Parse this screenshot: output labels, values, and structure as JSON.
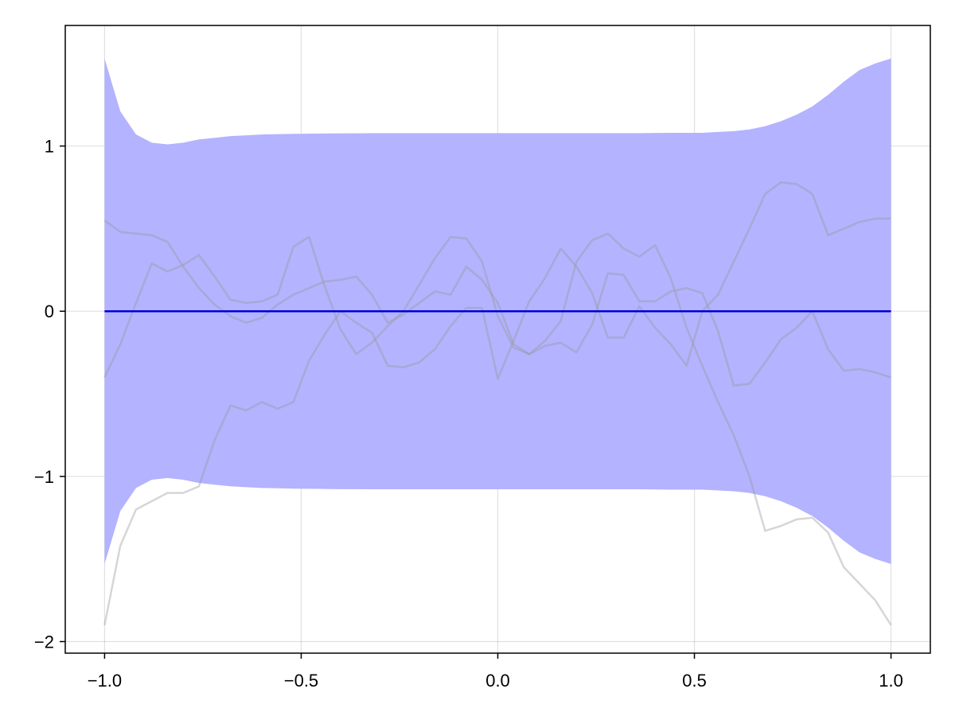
{
  "chart_data": {
    "type": "line",
    "title": "",
    "xlabel": "",
    "ylabel": "",
    "xlim": [
      -1.1,
      1.1
    ],
    "ylim": [
      -2.07,
      1.73
    ],
    "xticks": [
      -1.0,
      -0.5,
      0.0,
      0.5,
      1.0
    ],
    "xtick_labels": [
      "−1.0",
      "−0.5",
      "0.0",
      "0.5",
      "1.0"
    ],
    "yticks": [
      -2,
      -1,
      0,
      1
    ],
    "ytick_labels": [
      "−2",
      "−1",
      "0",
      "1"
    ],
    "grid": true,
    "colors": {
      "band": "#b3b3ff",
      "mean": "#0000dd",
      "sample": "#999999"
    },
    "x": [
      -1.0,
      -0.96,
      -0.92,
      -0.88,
      -0.84,
      -0.8,
      -0.76,
      -0.72,
      -0.68,
      -0.64,
      -0.6,
      -0.56,
      -0.52,
      -0.48,
      -0.44,
      -0.4,
      -0.36,
      -0.32,
      -0.28,
      -0.24,
      -0.2,
      -0.16,
      -0.12,
      -0.08,
      -0.04,
      0.0,
      0.04,
      0.08,
      0.12,
      0.16,
      0.2,
      0.24,
      0.28,
      0.32,
      0.36,
      0.4,
      0.44,
      0.48,
      0.52,
      0.56,
      0.6,
      0.64,
      0.68,
      0.72,
      0.76,
      0.8,
      0.84,
      0.88,
      0.92,
      0.96,
      1.0
    ],
    "band_upper": [
      1.53,
      1.21,
      1.07,
      1.02,
      1.01,
      1.02,
      1.04,
      1.05,
      1.06,
      1.065,
      1.07,
      1.072,
      1.074,
      1.075,
      1.076,
      1.077,
      1.077,
      1.078,
      1.078,
      1.078,
      1.078,
      1.078,
      1.078,
      1.078,
      1.078,
      1.078,
      1.078,
      1.078,
      1.078,
      1.078,
      1.078,
      1.078,
      1.078,
      1.078,
      1.078,
      1.079,
      1.08,
      1.08,
      1.08,
      1.085,
      1.09,
      1.1,
      1.12,
      1.15,
      1.19,
      1.24,
      1.31,
      1.39,
      1.46,
      1.5,
      1.53
    ],
    "band_lower": [
      -1.53,
      -1.21,
      -1.07,
      -1.02,
      -1.01,
      -1.02,
      -1.04,
      -1.05,
      -1.06,
      -1.065,
      -1.07,
      -1.072,
      -1.074,
      -1.075,
      -1.076,
      -1.077,
      -1.077,
      -1.078,
      -1.078,
      -1.078,
      -1.078,
      -1.078,
      -1.078,
      -1.078,
      -1.078,
      -1.078,
      -1.078,
      -1.078,
      -1.078,
      -1.078,
      -1.078,
      -1.078,
      -1.078,
      -1.078,
      -1.078,
      -1.079,
      -1.08,
      -1.08,
      -1.08,
      -1.085,
      -1.09,
      -1.1,
      -1.12,
      -1.15,
      -1.19,
      -1.24,
      -1.31,
      -1.39,
      -1.46,
      -1.5,
      -1.53
    ],
    "mean": [
      0,
      0,
      0,
      0,
      0,
      0,
      0,
      0,
      0,
      0,
      0,
      0,
      0,
      0,
      0,
      0,
      0,
      0,
      0,
      0,
      0,
      0,
      0,
      0,
      0,
      0,
      0,
      0,
      0,
      0,
      0,
      0,
      0,
      0,
      0,
      0,
      0,
      0,
      0,
      0,
      0,
      0,
      0,
      0,
      0,
      0,
      0,
      0,
      0,
      0,
      0
    ],
    "samples": [
      {
        "values": [
          0.55,
          0.48,
          0.47,
          0.46,
          0.42,
          0.27,
          0.14,
          0.04,
          -0.03,
          -0.07,
          -0.04,
          0.04,
          0.1,
          0.14,
          0.18,
          0.19,
          0.21,
          0.1,
          -0.07,
          -0.02,
          0.05,
          0.12,
          0.1,
          0.27,
          0.19,
          0.05,
          -0.2,
          -0.26,
          -0.21,
          -0.19,
          -0.25,
          -0.08,
          0.23,
          0.22,
          0.06,
          0.06,
          0.12,
          0.14,
          0.11,
          -0.12,
          -0.45,
          -0.44,
          -0.31,
          -0.17,
          -0.1,
          0.0,
          -0.23,
          -0.36,
          -0.35,
          -0.37,
          -0.4
        ]
      },
      {
        "values": [
          -0.4,
          -0.2,
          0.05,
          0.29,
          0.24,
          0.28,
          0.34,
          0.21,
          0.07,
          0.05,
          0.06,
          0.1,
          0.39,
          0.45,
          0.15,
          -0.11,
          -0.26,
          -0.19,
          -0.09,
          0.0,
          0.16,
          0.32,
          0.45,
          0.44,
          0.3,
          -0.03,
          -0.22,
          -0.26,
          -0.18,
          -0.06,
          0.3,
          0.43,
          0.47,
          0.38,
          0.33,
          0.4,
          0.2,
          -0.1,
          -0.33,
          -0.55,
          -0.75,
          -1.0,
          -1.33,
          -1.3,
          -1.26,
          -1.25,
          -1.34,
          -1.55,
          -1.65,
          -1.75,
          -1.9
        ]
      },
      {
        "values": [
          -1.9,
          -1.42,
          -1.2,
          -1.15,
          -1.1,
          -1.1,
          -1.06,
          -0.78,
          -0.57,
          -0.6,
          -0.55,
          -0.59,
          -0.55,
          -0.3,
          -0.14,
          0.0,
          -0.07,
          -0.13,
          -0.33,
          -0.34,
          -0.31,
          -0.23,
          -0.09,
          0.02,
          0.02,
          -0.41,
          -0.18,
          0.06,
          0.2,
          0.38,
          0.27,
          0.11,
          -0.16,
          -0.16,
          0.03,
          -0.1,
          -0.2,
          -0.33,
          0.0,
          0.1,
          0.3,
          0.5,
          0.71,
          0.78,
          0.77,
          0.71,
          0.46,
          0.5,
          0.54,
          0.56,
          0.56
        ]
      }
    ]
  }
}
